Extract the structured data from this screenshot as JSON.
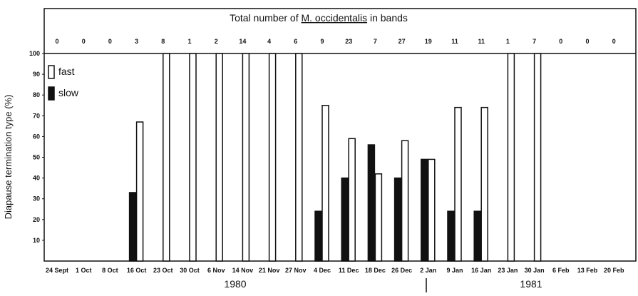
{
  "chart_data": {
    "type": "bar",
    "title": {
      "before": "Total number of ",
      "species": "M. occidentalis",
      "after": " in bands"
    },
    "y_label": "Diapause termination type (%)",
    "categories": [
      "24 Sept",
      "1 Oct",
      "8 Oct",
      "16 Oct",
      "23 Oct",
      "30 Oct",
      "6 Nov",
      "14 Nov",
      "21 Nov",
      "27 Nov",
      "4 Dec",
      "11 Dec",
      "18 Dec",
      "26 Dec",
      "2 Jan",
      "9 Jan",
      "16 Jan",
      "23 Jan",
      "30 Jan",
      "6 Feb",
      "13 Feb",
      "20 Feb"
    ],
    "totals": [
      0,
      0,
      0,
      3,
      8,
      1,
      2,
      14,
      4,
      6,
      9,
      23,
      7,
      27,
      19,
      11,
      11,
      1,
      7,
      0,
      0,
      0
    ],
    "series": [
      {
        "name": "slow",
        "color": "#111111",
        "values": [
          null,
          null,
          null,
          33,
          0,
          0,
          0,
          0,
          0,
          0,
          24,
          40,
          56,
          40,
          49,
          24,
          24,
          0,
          0,
          null,
          null,
          null
        ]
      },
      {
        "name": "fast",
        "color": "#ffffff",
        "values": [
          null,
          null,
          null,
          67,
          100,
          100,
          100,
          100,
          100,
          100,
          75,
          59,
          42,
          58,
          49,
          74,
          74,
          100,
          100,
          null,
          null,
          null
        ]
      }
    ],
    "years": [
      "1980",
      "1981"
    ],
    "ylim": [
      0,
      100
    ],
    "yticks": [
      10,
      20,
      30,
      40,
      50,
      60,
      70,
      80,
      90,
      100
    ],
    "legend": "top-left"
  }
}
